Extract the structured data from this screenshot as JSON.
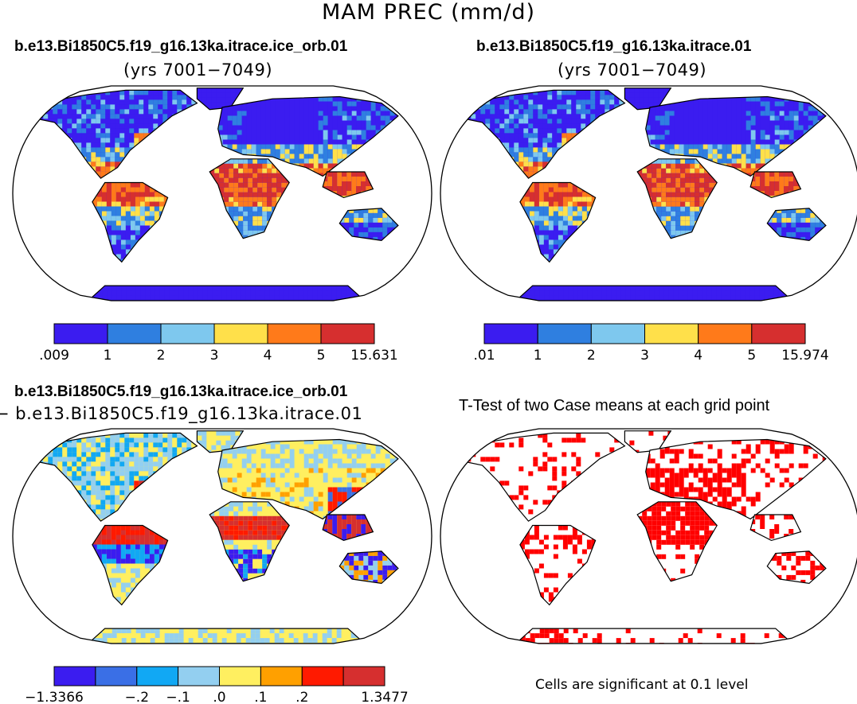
{
  "figure": {
    "main_title": "MAM PREC (mm/d)",
    "panels": {
      "top_left": {
        "title": "b.e13.Bi1850C5.f19_g16.13ka.itrace.ice_orb.01",
        "subtitle": "(yrs 7001−7049)"
      },
      "top_right": {
        "title": "b.e13.Bi1850C5.f19_g16.13ka.itrace.01",
        "subtitle": "(yrs 7001−7049)"
      },
      "bottom_left": {
        "title": "b.e13.Bi1850C5.f19_g16.13ka.itrace.ice_orb.01",
        "subtitle": "− b.e13.Bi1850C5.f19_g16.13ka.itrace.01"
      },
      "bottom_right": {
        "title": "T-Test of two Case means at each grid point",
        "note": "Cells are significant at 0.1 level"
      }
    }
  },
  "chart_data": [
    {
      "type": "heatmap",
      "panel": "top_left",
      "title": "b.e13.Bi1850C5.f19_g16.13ka.itrace.ice_orb.01",
      "subtitle": "(yrs 7001−7049)",
      "projection": "Robinson",
      "colorbar": {
        "colors": [
          "#3b1cf0",
          "#2f7fe0",
          "#7ec8ee",
          "#ffe04a",
          "#ff7a1a",
          "#d62f2f"
        ],
        "tick_labels": [
          ".009",
          "1",
          "2",
          "3",
          "4",
          "5",
          "15.631"
        ]
      }
    },
    {
      "type": "heatmap",
      "panel": "top_right",
      "title": "b.e13.Bi1850C5.f19_g16.13ka.itrace.01",
      "subtitle": "(yrs 7001−7049)",
      "projection": "Robinson",
      "colorbar": {
        "colors": [
          "#3b1cf0",
          "#2f7fe0",
          "#7ec8ee",
          "#ffe04a",
          "#ff7a1a",
          "#d62f2f"
        ],
        "tick_labels": [
          ".01",
          "1",
          "2",
          "3",
          "4",
          "5",
          "15.974"
        ]
      }
    },
    {
      "type": "heatmap",
      "panel": "bottom_left",
      "title": "b.e13.Bi1850C5.f19_g16.13ka.itrace.ice_orb.01",
      "subtitle": "− b.e13.Bi1850C5.f19_g16.13ka.itrace.01",
      "projection": "Robinson",
      "colorbar": {
        "colors": [
          "#3b1cf0",
          "#3a6fe6",
          "#11a8f4",
          "#93cff0",
          "#ffef60",
          "#ffa000",
          "#ff1a00",
          "#d62f2f"
        ],
        "tick_labels": [
          "−1.3366",
          "",
          "−.2",
          "−.1",
          ".0",
          ".1",
          ".2",
          "",
          "1.3477"
        ]
      }
    },
    {
      "type": "heatmap",
      "panel": "bottom_right",
      "title": "T-Test of two Case means at each grid point",
      "projection": "Robinson",
      "significance_color": "#ff0000",
      "note": "Cells are significant at 0.1 level"
    }
  ]
}
